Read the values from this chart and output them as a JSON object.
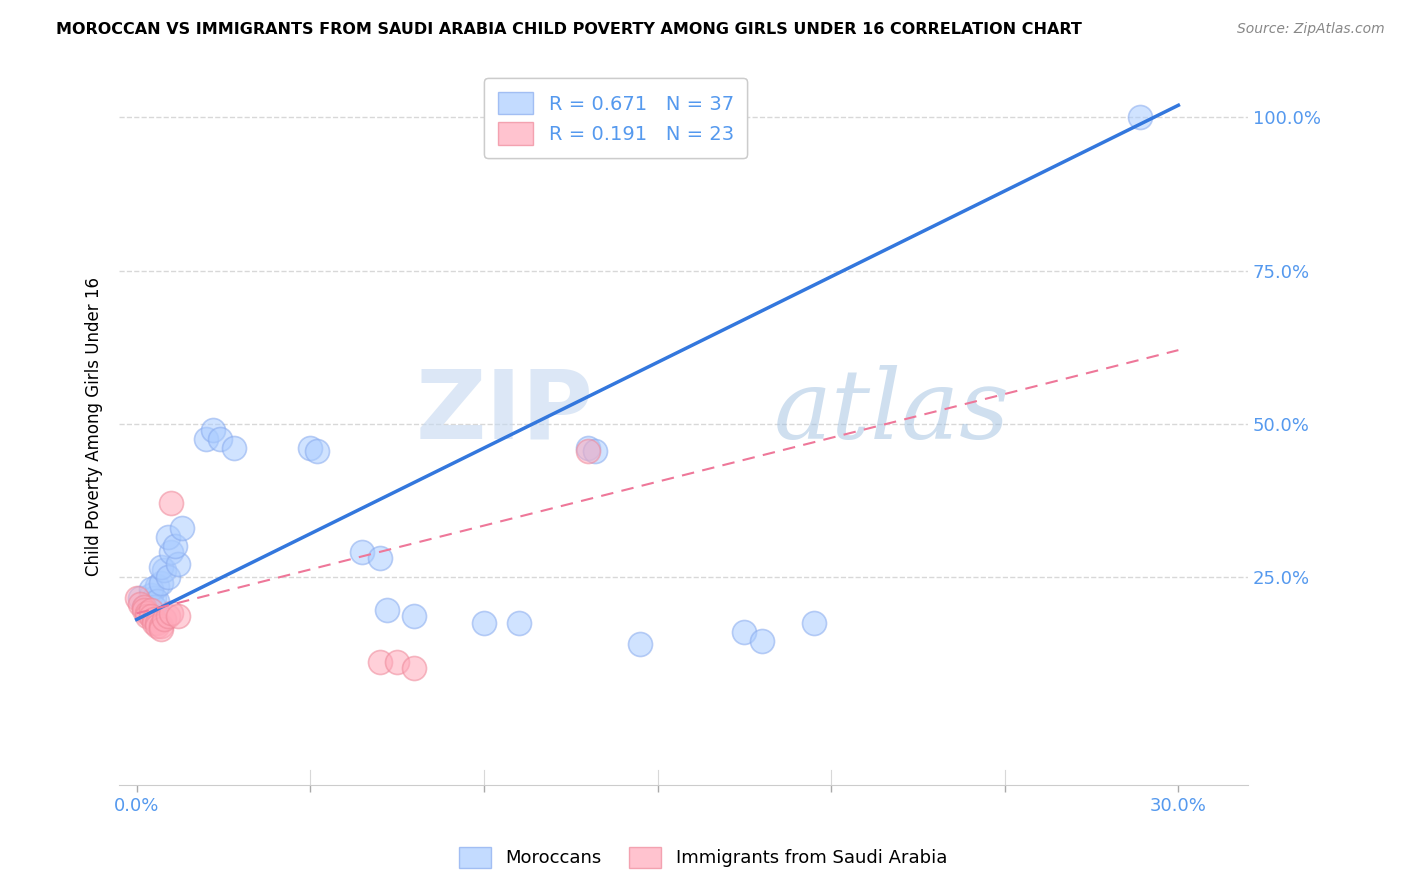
{
  "title": "MOROCCAN VS IMMIGRANTS FROM SAUDI ARABIA CHILD POVERTY AMONG GIRLS UNDER 16 CORRELATION CHART",
  "source": "Source: ZipAtlas.com",
  "xlabel_ticks_labels": [
    "0.0%",
    "",
    "",
    "",
    "",
    "",
    "30.0%"
  ],
  "xlabel_vals": [
    0.0,
    0.05,
    0.1,
    0.15,
    0.2,
    0.25,
    0.3
  ],
  "ylabel_ticks": [
    "25.0%",
    "50.0%",
    "75.0%",
    "100.0%"
  ],
  "ylabel_vals": [
    0.25,
    0.5,
    0.75,
    1.0
  ],
  "ylabel_label": "Child Poverty Among Girls Under 16",
  "xlim": [
    -0.005,
    0.32
  ],
  "ylim": [
    -0.09,
    1.08
  ],
  "legend1_label": "R = 0.671   N = 37",
  "legend2_label": "R = 0.191   N = 23",
  "legend_moroccans": "Moroccans",
  "legend_saudi": "Immigrants from Saudi Arabia",
  "watermark_zip": "ZIP",
  "watermark_atlas": "atlas",
  "blue_color": "#7ab3ef",
  "pink_color": "#f4a0b5",
  "blue_scatter": [
    [
      0.001,
      0.215
    ],
    [
      0.002,
      0.2
    ],
    [
      0.003,
      0.195
    ],
    [
      0.004,
      0.22
    ],
    [
      0.005,
      0.215
    ],
    [
      0.006,
      0.235
    ],
    [
      0.004,
      0.23
    ],
    [
      0.005,
      0.2
    ],
    [
      0.006,
      0.21
    ],
    [
      0.007,
      0.24
    ],
    [
      0.008,
      0.26
    ],
    [
      0.007,
      0.265
    ],
    [
      0.009,
      0.25
    ],
    [
      0.01,
      0.29
    ],
    [
      0.009,
      0.315
    ],
    [
      0.012,
      0.27
    ],
    [
      0.011,
      0.3
    ],
    [
      0.013,
      0.33
    ],
    [
      0.02,
      0.475
    ],
    [
      0.022,
      0.49
    ],
    [
      0.024,
      0.475
    ],
    [
      0.028,
      0.46
    ],
    [
      0.05,
      0.46
    ],
    [
      0.052,
      0.455
    ],
    [
      0.065,
      0.29
    ],
    [
      0.07,
      0.28
    ],
    [
      0.072,
      0.195
    ],
    [
      0.08,
      0.185
    ],
    [
      0.1,
      0.175
    ],
    [
      0.11,
      0.175
    ],
    [
      0.13,
      0.46
    ],
    [
      0.132,
      0.455
    ],
    [
      0.145,
      0.14
    ],
    [
      0.175,
      0.16
    ],
    [
      0.18,
      0.145
    ],
    [
      0.195,
      0.175
    ],
    [
      0.289,
      1.0
    ]
  ],
  "pink_scatter": [
    [
      0.0,
      0.215
    ],
    [
      0.001,
      0.205
    ],
    [
      0.002,
      0.2
    ],
    [
      0.002,
      0.195
    ],
    [
      0.003,
      0.19
    ],
    [
      0.003,
      0.185
    ],
    [
      0.004,
      0.195
    ],
    [
      0.004,
      0.185
    ],
    [
      0.005,
      0.18
    ],
    [
      0.005,
      0.175
    ],
    [
      0.006,
      0.175
    ],
    [
      0.006,
      0.17
    ],
    [
      0.007,
      0.17
    ],
    [
      0.007,
      0.165
    ],
    [
      0.008,
      0.18
    ],
    [
      0.009,
      0.185
    ],
    [
      0.01,
      0.37
    ],
    [
      0.01,
      0.19
    ],
    [
      0.012,
      0.185
    ],
    [
      0.07,
      0.11
    ],
    [
      0.075,
      0.11
    ],
    [
      0.08,
      0.1
    ],
    [
      0.13,
      0.455
    ]
  ],
  "blue_line_x": [
    0.0,
    0.3
  ],
  "blue_line_y": [
    0.18,
    1.02
  ],
  "pink_line_x": [
    0.0,
    0.3
  ],
  "pink_line_y": [
    0.19,
    0.62
  ],
  "grid_color": "#d8d8d8",
  "background_color": "#ffffff",
  "tick_color": "#5599ee"
}
